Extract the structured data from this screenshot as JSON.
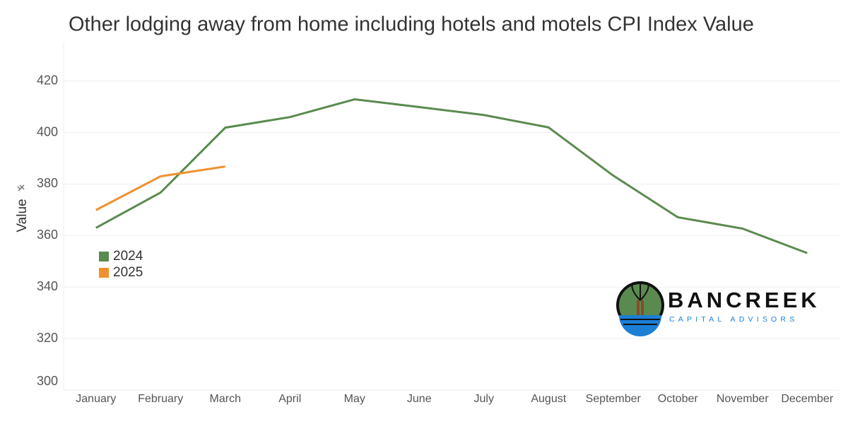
{
  "chart_data": {
    "type": "line",
    "title": "Other lodging away from home including hotels and motels CPI Index Value",
    "y_label": "Value",
    "categories": [
      "January",
      "February",
      "March",
      "April",
      "May",
      "June",
      "July",
      "August",
      "September",
      "October",
      "November",
      "December"
    ],
    "series": [
      {
        "name": "2024",
        "color": "#5a8a50",
        "values": [
          363,
          376.7,
          401.9,
          406,
          412.9,
          409.9,
          406.8,
          402,
          383.3,
          367.1,
          362.7,
          353.2
        ]
      },
      {
        "name": "2025",
        "color": "#f0912f",
        "values": [
          369.9,
          383,
          386.8,
          null,
          null,
          null,
          null,
          null,
          null,
          null,
          null,
          null
        ]
      }
    ],
    "ylim": [
      300,
      435
    ],
    "yticks": [
      300,
      320,
      340,
      360,
      380,
      400,
      420
    ],
    "grid": true,
    "legend": "left"
  },
  "logo": {
    "name": "BANCREEK",
    "tagline": "CAPITAL ADVISORS"
  }
}
